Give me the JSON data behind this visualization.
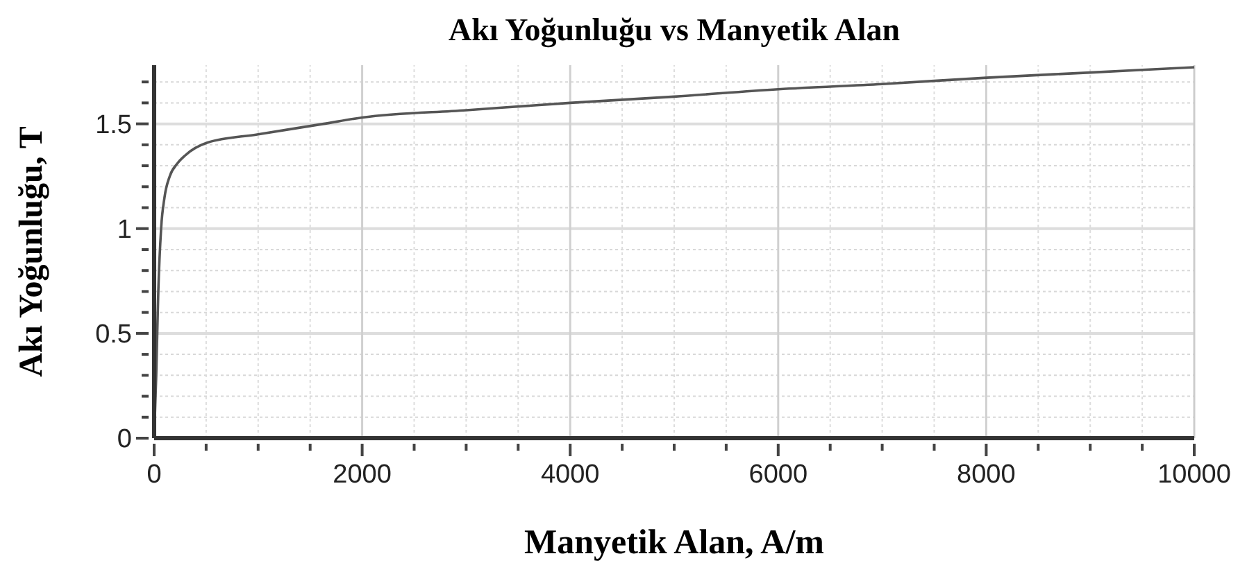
{
  "chart_data": {
    "type": "line",
    "title": "Akı Yoğunluğu vs Manyetik Alan",
    "xlabel": "Manyetik Alan, A/m",
    "ylabel": "Akı Yoğunluğu, T",
    "x": [
      0,
      20,
      40,
      67,
      100,
      150,
      222,
      300,
      511,
      1000,
      1630,
      2000,
      3000,
      4000,
      5000,
      6000,
      7000,
      8000,
      9000,
      10000
    ],
    "series": [
      {
        "color": "#555555",
        "values": [
          0,
          0.3,
          0.7,
          1.0,
          1.15,
          1.25,
          1.31,
          1.35,
          1.41,
          1.45,
          1.5,
          1.53,
          1.565,
          1.6,
          1.63,
          1.665,
          1.69,
          1.72,
          1.745,
          1.77
        ]
      }
    ],
    "xlim": [
      0,
      10000
    ],
    "ylim": [
      0,
      1.78
    ],
    "xticks": [
      0,
      {
        "value": 500,
        "label": null
      },
      {
        "value": 1000,
        "label": null
      },
      {
        "value": 1500,
        "label": null
      },
      2000,
      {
        "value": 2500,
        "label": null
      },
      {
        "value": 3000,
        "label": null
      },
      {
        "value": 3500,
        "label": null
      },
      4000,
      {
        "value": 4500,
        "label": null
      },
      {
        "value": 5000,
        "label": null
      },
      {
        "value": 5500,
        "label": null
      },
      6000,
      {
        "value": 6500,
        "label": null
      },
      {
        "value": 7000,
        "label": null
      },
      {
        "value": 7500,
        "label": null
      },
      8000,
      {
        "value": 8500,
        "label": null
      },
      {
        "value": 9000,
        "label": null
      },
      {
        "value": 9500,
        "label": null
      },
      10000
    ],
    "yticks": [
      0,
      {
        "value": 0.1,
        "label": null
      },
      {
        "value": 0.2,
        "label": null
      },
      {
        "value": 0.3,
        "label": null
      },
      {
        "value": 0.4,
        "label": null
      },
      0.5,
      {
        "value": 0.6,
        "label": null
      },
      {
        "value": 0.7,
        "label": null
      },
      {
        "value": 0.8,
        "label": null
      },
      {
        "value": 0.9,
        "label": null
      },
      1,
      {
        "value": 1.1,
        "label": null
      },
      {
        "value": 1.2,
        "label": null
      },
      {
        "value": 1.3,
        "label": null
      },
      {
        "value": 1.4,
        "label": null
      },
      1.5,
      {
        "value": 1.6,
        "label": null
      },
      {
        "value": 1.7,
        "label": null
      }
    ],
    "grid": true,
    "line_style": "solid",
    "marker": "none"
  }
}
